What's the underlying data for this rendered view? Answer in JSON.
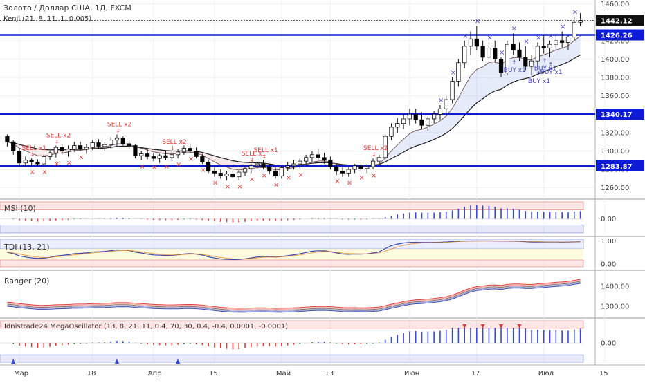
{
  "header": {
    "symbol": "Золото / Доллар США, 1Д, FXCM",
    "indicator": "Kenji (21, 8, 11, 1, 0.005)"
  },
  "colors": {
    "up": "#ffffff",
    "down": "#000000",
    "level": "#0d1bd6",
    "sell": "#e53935",
    "buy": "#3f3fd0",
    "marker": "#4b3fc8"
  },
  "chart_data": [
    {
      "type": "candlestick",
      "pane": "price",
      "ylim": [
        1250,
        1462
      ],
      "yticks": [
        1260,
        1280,
        1300,
        1320,
        1340,
        1360,
        1380,
        1400,
        1420,
        1440,
        1460
      ],
      "x_labels": [
        {
          "i": 2,
          "label": "Мар"
        },
        {
          "i": 14,
          "label": "18"
        },
        {
          "i": 24,
          "label": "Апр"
        },
        {
          "i": 34,
          "label": "15"
        },
        {
          "i": 45,
          "label": "Май"
        },
        {
          "i": 53,
          "label": "13"
        },
        {
          "i": 66,
          "label": "Июн"
        },
        {
          "i": 77,
          "label": "17"
        },
        {
          "i": 88,
          "label": "Июл"
        },
        {
          "i": 98,
          "label": "15"
        }
      ],
      "levels": [
        {
          "value": 1426.26,
          "label": "1426.26"
        },
        {
          "value": 1340.17,
          "label": "1340.17"
        },
        {
          "value": 1283.87,
          "label": "1283.87"
        }
      ],
      "last_price": {
        "value": 1442.12,
        "label": "1442.12"
      },
      "ohlc": [
        [
          1316,
          1318,
          1305,
          1310
        ],
        [
          1310,
          1312,
          1296,
          1300
        ],
        [
          1300,
          1303,
          1283,
          1287
        ],
        [
          1287,
          1294,
          1283,
          1290
        ],
        [
          1290,
          1292,
          1284,
          1288
        ],
        [
          1288,
          1291,
          1284,
          1286
        ],
        [
          1286,
          1296,
          1284,
          1294
        ],
        [
          1294,
          1300,
          1290,
          1298
        ],
        [
          1298,
          1306,
          1293,
          1304
        ],
        [
          1304,
          1307,
          1296,
          1300
        ],
        [
          1300,
          1306,
          1294,
          1302
        ],
        [
          1302,
          1310,
          1299,
          1306
        ],
        [
          1306,
          1310,
          1300,
          1302
        ],
        [
          1302,
          1308,
          1297,
          1304
        ],
        [
          1304,
          1312,
          1301,
          1309
        ],
        [
          1309,
          1313,
          1302,
          1305
        ],
        [
          1305,
          1310,
          1300,
          1307
        ],
        [
          1307,
          1315,
          1303,
          1312
        ],
        [
          1312,
          1318,
          1305,
          1314
        ],
        [
          1314,
          1316,
          1306,
          1308
        ],
        [
          1308,
          1312,
          1302,
          1306
        ],
        [
          1306,
          1308,
          1292,
          1295
        ],
        [
          1295,
          1300,
          1290,
          1297
        ],
        [
          1297,
          1302,
          1291,
          1294
        ],
        [
          1294,
          1298,
          1289,
          1292
        ],
        [
          1292,
          1297,
          1287,
          1295
        ],
        [
          1295,
          1300,
          1290,
          1293
        ],
        [
          1293,
          1299,
          1289,
          1296
        ],
        [
          1296,
          1302,
          1292,
          1299
        ],
        [
          1299,
          1306,
          1296,
          1303
        ],
        [
          1303,
          1308,
          1298,
          1300
        ],
        [
          1300,
          1304,
          1292,
          1294
        ],
        [
          1294,
          1297,
          1286,
          1288
        ],
        [
          1288,
          1290,
          1276,
          1278
        ],
        [
          1278,
          1282,
          1272,
          1276
        ],
        [
          1276,
          1280,
          1270,
          1273
        ],
        [
          1273,
          1278,
          1268,
          1275
        ],
        [
          1275,
          1280,
          1270,
          1272
        ],
        [
          1272,
          1279,
          1268,
          1277
        ],
        [
          1277,
          1283,
          1273,
          1281
        ],
        [
          1281,
          1286,
          1276,
          1284
        ],
        [
          1284,
          1289,
          1280,
          1286
        ],
        [
          1286,
          1290,
          1280,
          1283
        ],
        [
          1283,
          1286,
          1275,
          1278
        ],
        [
          1278,
          1282,
          1270,
          1273
        ],
        [
          1273,
          1284,
          1270,
          1282
        ],
        [
          1282,
          1288,
          1278,
          1284
        ],
        [
          1284,
          1290,
          1280,
          1286
        ],
        [
          1286,
          1292,
          1281,
          1289
        ],
        [
          1289,
          1296,
          1285,
          1293
        ],
        [
          1293,
          1300,
          1288,
          1296
        ],
        [
          1296,
          1302,
          1290,
          1293
        ],
        [
          1293,
          1298,
          1286,
          1290
        ],
        [
          1290,
          1294,
          1280,
          1283
        ],
        [
          1283,
          1286,
          1274,
          1278
        ],
        [
          1278,
          1282,
          1272,
          1276
        ],
        [
          1276,
          1282,
          1272,
          1280
        ],
        [
          1280,
          1286,
          1276,
          1284
        ],
        [
          1284,
          1288,
          1278,
          1281
        ],
        [
          1281,
          1286,
          1276,
          1283
        ],
        [
          1283,
          1292,
          1280,
          1289
        ],
        [
          1289,
          1296,
          1286,
          1293
        ],
        [
          1293,
          1318,
          1291,
          1316
        ],
        [
          1316,
          1330,
          1312,
          1326
        ],
        [
          1326,
          1336,
          1320,
          1330
        ],
        [
          1330,
          1340,
          1324,
          1335
        ],
        [
          1335,
          1346,
          1328,
          1340
        ],
        [
          1340,
          1346,
          1330,
          1334
        ],
        [
          1334,
          1342,
          1324,
          1328
        ],
        [
          1328,
          1338,
          1322,
          1335
        ],
        [
          1335,
          1344,
          1330,
          1340
        ],
        [
          1340,
          1350,
          1334,
          1346
        ],
        [
          1346,
          1360,
          1340,
          1356
        ],
        [
          1356,
          1380,
          1352,
          1376
        ],
        [
          1376,
          1400,
          1370,
          1396
        ],
        [
          1396,
          1420,
          1390,
          1414
        ],
        [
          1414,
          1430,
          1404,
          1422
        ],
        [
          1422,
          1436,
          1410,
          1414
        ],
        [
          1414,
          1420,
          1398,
          1402
        ],
        [
          1402,
          1418,
          1396,
          1412
        ],
        [
          1412,
          1420,
          1396,
          1400
        ],
        [
          1400,
          1402,
          1380,
          1385
        ],
        [
          1385,
          1420,
          1382,
          1416
        ],
        [
          1416,
          1428,
          1404,
          1410
        ],
        [
          1410,
          1418,
          1398,
          1402
        ],
        [
          1402,
          1414,
          1388,
          1392
        ],
        [
          1392,
          1404,
          1382,
          1398
        ],
        [
          1398,
          1418,
          1392,
          1414
        ],
        [
          1414,
          1426,
          1406,
          1412
        ],
        [
          1412,
          1420,
          1402,
          1416
        ],
        [
          1416,
          1426,
          1410,
          1420
        ],
        [
          1420,
          1430,
          1412,
          1418
        ],
        [
          1418,
          1426,
          1410,
          1424
        ],
        [
          1424,
          1446,
          1420,
          1440
        ],
        [
          1440,
          1450,
          1436,
          1442
        ]
      ],
      "annotations": [
        {
          "i": 4,
          "side": "sell",
          "text": "SELL x1"
        },
        {
          "i": 8,
          "side": "sell",
          "text": "SELL x2"
        },
        {
          "i": 18,
          "side": "sell",
          "text": "SELL x2"
        },
        {
          "i": 27,
          "side": "sell",
          "text": "SELL x2"
        },
        {
          "i": 40,
          "side": "sell",
          "text": "SELL x1"
        },
        {
          "i": 42,
          "side": "sell",
          "text": "SELL x1"
        },
        {
          "i": 60,
          "side": "sell",
          "text": "SELL x2"
        },
        {
          "i": 83,
          "side": "buy",
          "text": "BUY x1"
        },
        {
          "i": 87,
          "side": "buy",
          "text": "BUY x1"
        },
        {
          "i": 88,
          "side": "buy",
          "text": "BUY x1"
        },
        {
          "i": 89,
          "side": "buy",
          "text": "BUY x1"
        }
      ]
    },
    {
      "type": "bar",
      "pane": "msi",
      "title": "MSI (10)",
      "ylim": [
        -1,
        1
      ],
      "yticks": [
        0
      ],
      "ytick_labels": [
        "0.00"
      ]
    },
    {
      "type": "line",
      "pane": "tdi",
      "title": "TDI (13, 21)",
      "ylim": [
        -0.15,
        1.1
      ],
      "yticks": [
        1,
        0
      ],
      "ytick_labels": [
        "1.00",
        "0.00"
      ]
    },
    {
      "type": "line",
      "pane": "ranger",
      "title": "Ranger (20)",
      "ylim": [
        1255,
        1470
      ],
      "yticks": [
        1400,
        1300
      ],
      "ytick_labels": [
        "1400.00",
        "1300.00"
      ]
    },
    {
      "type": "bar",
      "pane": "mega",
      "title": "Idnistrade24 MegaOscillator (13, 8, 21, 11, 0.4, 70, 30, 0.4, -0.4, 0.0001, -0.0001)",
      "ylim": [
        -1,
        1
      ],
      "yticks": [
        0
      ],
      "ytick_labels": [
        "0.00"
      ]
    }
  ]
}
